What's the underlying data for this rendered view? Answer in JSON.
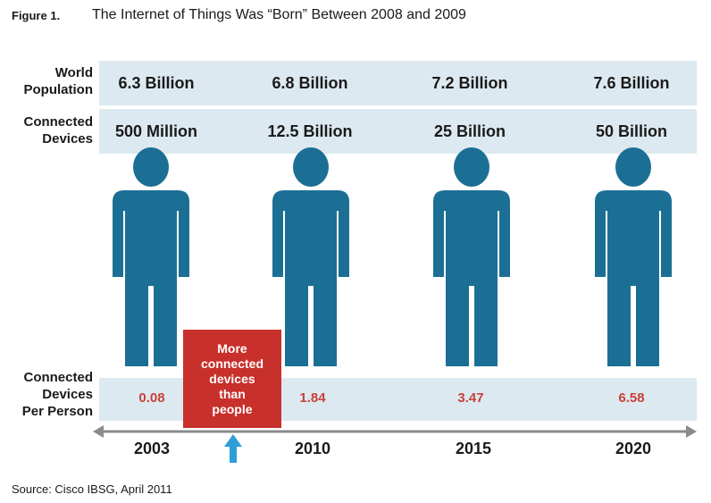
{
  "figure": {
    "label": "Figure 1.",
    "title": "The Internet of Things Was “Born” Between 2008 and 2009",
    "source": "Source: Cisco IBSG, April 2011"
  },
  "rows": {
    "world_population": "World\nPopulation",
    "connected_devices": "Connected\nDevices",
    "per_person": "Connected\nDevices\nPer Person"
  },
  "callout": "More\nconnected\ndevices\nthan\npeople",
  "colors": {
    "person": "#1c6f94",
    "band": "#dde9f0",
    "callout": "#c8302c",
    "ratio_text": "#c9403a",
    "axis": "#8a8a8a",
    "arrow": "#2d9fd6"
  },
  "chart_data": {
    "type": "table",
    "x": [
      "2003",
      "2010",
      "2015",
      "2020"
    ],
    "world_population": [
      "6.3 Billion",
      "6.8 Billion",
      "7.2 Billion",
      "7.6 Billion"
    ],
    "connected_devices": [
      "500 Million",
      "12.5 Billion",
      "25 Billion",
      "50 Billion"
    ],
    "devices_per_person": [
      0.08,
      1.84,
      3.47,
      6.58
    ],
    "devices_per_person_labels": [
      "0.08",
      "1.84",
      "3.47",
      "6.58"
    ],
    "xlabel": "",
    "ylabel": ""
  }
}
